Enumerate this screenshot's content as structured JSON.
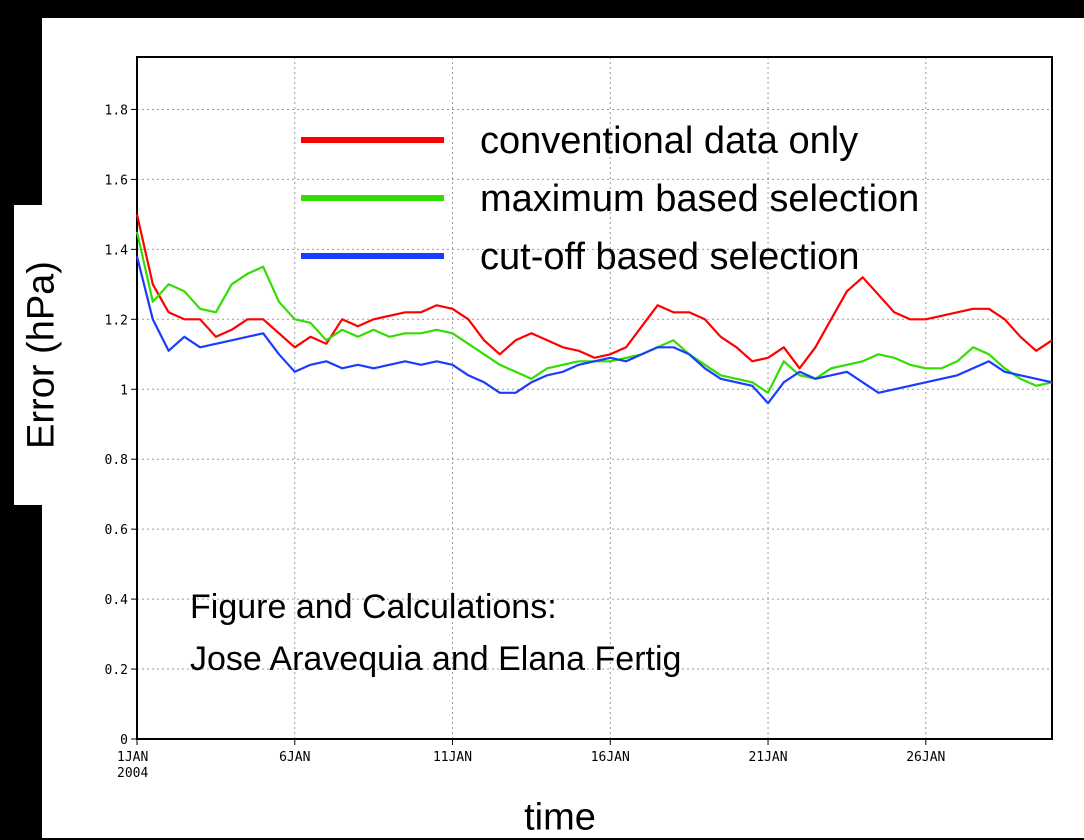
{
  "chart_data": {
    "type": "line",
    "ylabel": "Error (hPa)",
    "xlabel": "time",
    "ylim": [
      0,
      1.95
    ],
    "yticks": [
      "0",
      "0.2",
      "0.4",
      "0.6",
      "0.8",
      "1",
      "1.2",
      "1.4",
      "1.6",
      "1.8"
    ],
    "yticks_values": [
      0,
      0.2,
      0.4,
      0.6,
      0.8,
      1.0,
      1.2,
      1.4,
      1.6,
      1.8
    ],
    "xlim": [
      "2004-01-01",
      "2004-01-30"
    ],
    "xticks": [
      {
        "label": "1JAN",
        "sublabel": "2004",
        "date": "2004-01-01"
      },
      {
        "label": "6JAN",
        "sublabel": "",
        "date": "2004-01-06"
      },
      {
        "label": "11JAN",
        "sublabel": "",
        "date": "2004-01-11"
      },
      {
        "label": "16JAN",
        "sublabel": "",
        "date": "2004-01-16"
      },
      {
        "label": "21JAN",
        "sublabel": "",
        "date": "2004-01-21"
      },
      {
        "label": "26JAN",
        "sublabel": "",
        "date": "2004-01-26"
      }
    ],
    "grid": true,
    "legend_position": "top-right",
    "annotation": [
      "Figure and Calculations:",
      "Jose Aravequia and Elana Fertig"
    ],
    "series": [
      {
        "name": "conventional data only",
        "color": "#ff0000",
        "points": [
          [
            "2004-01-01",
            1.5
          ],
          [
            "2004-01-01T12:00",
            1.3
          ],
          [
            "2004-01-02",
            1.22
          ],
          [
            "2004-01-02T12:00",
            1.2
          ],
          [
            "2004-01-03",
            1.2
          ],
          [
            "2004-01-03T12:00",
            1.15
          ],
          [
            "2004-01-04",
            1.17
          ],
          [
            "2004-01-04T12:00",
            1.2
          ],
          [
            "2004-01-05",
            1.2
          ],
          [
            "2004-01-05T12:00",
            1.16
          ],
          [
            "2004-01-06",
            1.12
          ],
          [
            "2004-01-06T12:00",
            1.15
          ],
          [
            "2004-01-07",
            1.13
          ],
          [
            "2004-01-07T12:00",
            1.2
          ],
          [
            "2004-01-08",
            1.18
          ],
          [
            "2004-01-08T12:00",
            1.2
          ],
          [
            "2004-01-09",
            1.21
          ],
          [
            "2004-01-09T12:00",
            1.22
          ],
          [
            "2004-01-10",
            1.22
          ],
          [
            "2004-01-10T12:00",
            1.24
          ],
          [
            "2004-01-11",
            1.23
          ],
          [
            "2004-01-11T12:00",
            1.2
          ],
          [
            "2004-01-12",
            1.14
          ],
          [
            "2004-01-12T12:00",
            1.1
          ],
          [
            "2004-01-13",
            1.14
          ],
          [
            "2004-01-13T12:00",
            1.16
          ],
          [
            "2004-01-14",
            1.14
          ],
          [
            "2004-01-14T12:00",
            1.12
          ],
          [
            "2004-01-15",
            1.11
          ],
          [
            "2004-01-15T12:00",
            1.09
          ],
          [
            "2004-01-16",
            1.1
          ],
          [
            "2004-01-16T12:00",
            1.12
          ],
          [
            "2004-01-17",
            1.18
          ],
          [
            "2004-01-17T12:00",
            1.24
          ],
          [
            "2004-01-18",
            1.22
          ],
          [
            "2004-01-18T12:00",
            1.22
          ],
          [
            "2004-01-19",
            1.2
          ],
          [
            "2004-01-19T12:00",
            1.15
          ],
          [
            "2004-01-20",
            1.12
          ],
          [
            "2004-01-20T12:00",
            1.08
          ],
          [
            "2004-01-21",
            1.09
          ],
          [
            "2004-01-21T12:00",
            1.12
          ],
          [
            "2004-01-22",
            1.06
          ],
          [
            "2004-01-22T12:00",
            1.12
          ],
          [
            "2004-01-23",
            1.2
          ],
          [
            "2004-01-23T12:00",
            1.28
          ],
          [
            "2004-01-24",
            1.32
          ],
          [
            "2004-01-24T12:00",
            1.27
          ],
          [
            "2004-01-25",
            1.22
          ],
          [
            "2004-01-25T12:00",
            1.2
          ],
          [
            "2004-01-26",
            1.2
          ],
          [
            "2004-01-26T12:00",
            1.21
          ],
          [
            "2004-01-27",
            1.22
          ],
          [
            "2004-01-27T12:00",
            1.23
          ],
          [
            "2004-01-28",
            1.23
          ],
          [
            "2004-01-28T12:00",
            1.2
          ],
          [
            "2004-01-29",
            1.15
          ],
          [
            "2004-01-29T12:00",
            1.11
          ],
          [
            "2004-01-30",
            1.14
          ]
        ]
      },
      {
        "name": "maximum based selection",
        "color": "#33dd00",
        "points": [
          [
            "2004-01-01",
            1.45
          ],
          [
            "2004-01-01T12:00",
            1.25
          ],
          [
            "2004-01-02",
            1.3
          ],
          [
            "2004-01-02T12:00",
            1.28
          ],
          [
            "2004-01-03",
            1.23
          ],
          [
            "2004-01-03T12:00",
            1.22
          ],
          [
            "2004-01-04",
            1.3
          ],
          [
            "2004-01-04T12:00",
            1.33
          ],
          [
            "2004-01-05",
            1.35
          ],
          [
            "2004-01-05T12:00",
            1.25
          ],
          [
            "2004-01-06",
            1.2
          ],
          [
            "2004-01-06T12:00",
            1.19
          ],
          [
            "2004-01-07",
            1.14
          ],
          [
            "2004-01-07T12:00",
            1.17
          ],
          [
            "2004-01-08",
            1.15
          ],
          [
            "2004-01-08T12:00",
            1.17
          ],
          [
            "2004-01-09",
            1.15
          ],
          [
            "2004-01-09T12:00",
            1.16
          ],
          [
            "2004-01-10",
            1.16
          ],
          [
            "2004-01-10T12:00",
            1.17
          ],
          [
            "2004-01-11",
            1.16
          ],
          [
            "2004-01-11T12:00",
            1.13
          ],
          [
            "2004-01-12",
            1.1
          ],
          [
            "2004-01-12T12:00",
            1.07
          ],
          [
            "2004-01-13",
            1.05
          ],
          [
            "2004-01-13T12:00",
            1.03
          ],
          [
            "2004-01-14",
            1.06
          ],
          [
            "2004-01-14T12:00",
            1.07
          ],
          [
            "2004-01-15",
            1.08
          ],
          [
            "2004-01-15T12:00",
            1.08
          ],
          [
            "2004-01-16",
            1.08
          ],
          [
            "2004-01-16T12:00",
            1.09
          ],
          [
            "2004-01-17",
            1.1
          ],
          [
            "2004-01-17T12:00",
            1.12
          ],
          [
            "2004-01-18",
            1.14
          ],
          [
            "2004-01-18T12:00",
            1.1
          ],
          [
            "2004-01-19",
            1.07
          ],
          [
            "2004-01-19T12:00",
            1.04
          ],
          [
            "2004-01-20",
            1.03
          ],
          [
            "2004-01-20T12:00",
            1.02
          ],
          [
            "2004-01-21",
            0.99
          ],
          [
            "2004-01-21T12:00",
            1.08
          ],
          [
            "2004-01-22",
            1.04
          ],
          [
            "2004-01-22T12:00",
            1.03
          ],
          [
            "2004-01-23",
            1.06
          ],
          [
            "2004-01-23T12:00",
            1.07
          ],
          [
            "2004-01-24",
            1.08
          ],
          [
            "2004-01-24T12:00",
            1.1
          ],
          [
            "2004-01-25",
            1.09
          ],
          [
            "2004-01-25T12:00",
            1.07
          ],
          [
            "2004-01-26",
            1.06
          ],
          [
            "2004-01-26T12:00",
            1.06
          ],
          [
            "2004-01-27",
            1.08
          ],
          [
            "2004-01-27T12:00",
            1.12
          ],
          [
            "2004-01-28",
            1.1
          ],
          [
            "2004-01-28T12:00",
            1.06
          ],
          [
            "2004-01-29",
            1.03
          ],
          [
            "2004-01-29T12:00",
            1.01
          ],
          [
            "2004-01-30",
            1.02
          ]
        ]
      },
      {
        "name": "cut-off based selection",
        "color": "#1a3cff",
        "points": [
          [
            "2004-01-01",
            1.38
          ],
          [
            "2004-01-01T12:00",
            1.2
          ],
          [
            "2004-01-02",
            1.11
          ],
          [
            "2004-01-02T12:00",
            1.15
          ],
          [
            "2004-01-03",
            1.12
          ],
          [
            "2004-01-03T12:00",
            1.13
          ],
          [
            "2004-01-04",
            1.14
          ],
          [
            "2004-01-04T12:00",
            1.15
          ],
          [
            "2004-01-05",
            1.16
          ],
          [
            "2004-01-05T12:00",
            1.1
          ],
          [
            "2004-01-06",
            1.05
          ],
          [
            "2004-01-06T12:00",
            1.07
          ],
          [
            "2004-01-07",
            1.08
          ],
          [
            "2004-01-07T12:00",
            1.06
          ],
          [
            "2004-01-08",
            1.07
          ],
          [
            "2004-01-08T12:00",
            1.06
          ],
          [
            "2004-01-09",
            1.07
          ],
          [
            "2004-01-09T12:00",
            1.08
          ],
          [
            "2004-01-10",
            1.07
          ],
          [
            "2004-01-10T12:00",
            1.08
          ],
          [
            "2004-01-11",
            1.07
          ],
          [
            "2004-01-11T12:00",
            1.04
          ],
          [
            "2004-01-12",
            1.02
          ],
          [
            "2004-01-12T12:00",
            0.99
          ],
          [
            "2004-01-13",
            0.99
          ],
          [
            "2004-01-13T12:00",
            1.02
          ],
          [
            "2004-01-14",
            1.04
          ],
          [
            "2004-01-14T12:00",
            1.05
          ],
          [
            "2004-01-15",
            1.07
          ],
          [
            "2004-01-15T12:00",
            1.08
          ],
          [
            "2004-01-16",
            1.09
          ],
          [
            "2004-01-16T12:00",
            1.08
          ],
          [
            "2004-01-17",
            1.1
          ],
          [
            "2004-01-17T12:00",
            1.12
          ],
          [
            "2004-01-18",
            1.12
          ],
          [
            "2004-01-18T12:00",
            1.1
          ],
          [
            "2004-01-19",
            1.06
          ],
          [
            "2004-01-19T12:00",
            1.03
          ],
          [
            "2004-01-20",
            1.02
          ],
          [
            "2004-01-20T12:00",
            1.01
          ],
          [
            "2004-01-21",
            0.96
          ],
          [
            "2004-01-21T12:00",
            1.02
          ],
          [
            "2004-01-22",
            1.05
          ],
          [
            "2004-01-22T12:00",
            1.03
          ],
          [
            "2004-01-23",
            1.04
          ],
          [
            "2004-01-23T12:00",
            1.05
          ],
          [
            "2004-01-24",
            1.02
          ],
          [
            "2004-01-24T12:00",
            0.99
          ],
          [
            "2004-01-25",
            1.0
          ],
          [
            "2004-01-25T12:00",
            1.01
          ],
          [
            "2004-01-26",
            1.02
          ],
          [
            "2004-01-26T12:00",
            1.03
          ],
          [
            "2004-01-27",
            1.04
          ],
          [
            "2004-01-27T12:00",
            1.06
          ],
          [
            "2004-01-28",
            1.08
          ],
          [
            "2004-01-28T12:00",
            1.05
          ],
          [
            "2004-01-29",
            1.04
          ],
          [
            "2004-01-29T12:00",
            1.03
          ],
          [
            "2004-01-30",
            1.02
          ]
        ]
      }
    ]
  }
}
